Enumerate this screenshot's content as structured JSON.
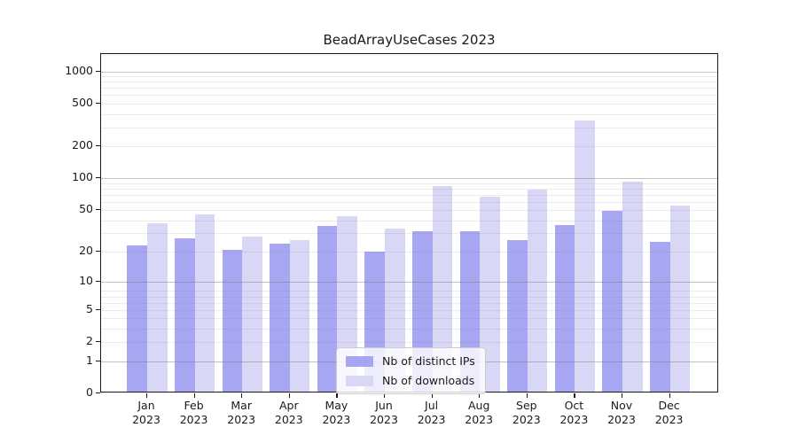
{
  "title": "BeadArrayUseCases 2023",
  "chart_data": {
    "type": "bar",
    "title": "BeadArrayUseCases 2023",
    "categories": [
      "Jan 2023",
      "Feb 2023",
      "Mar 2023",
      "Apr 2023",
      "May 2023",
      "Jun 2023",
      "Jul 2023",
      "Aug 2023",
      "Sep 2023",
      "Oct 2023",
      "Nov 2023",
      "Dec 2023"
    ],
    "series": [
      {
        "name": "Nb of distinct IPs",
        "color": "#a6a6f2",
        "values": [
          22,
          26,
          20,
          23,
          34,
          19,
          30,
          30,
          25,
          35,
          47,
          24
        ]
      },
      {
        "name": "Nb of downloads",
        "color": "#d8d8f6",
        "values": [
          36,
          44,
          27,
          25,
          42,
          32,
          82,
          65,
          75,
          335,
          90,
          53
        ]
      }
    ],
    "xlabel": "",
    "ylabel": "",
    "yscale": "log1p",
    "ylim": [
      0,
      1450
    ],
    "yticks": [
      0,
      1,
      2,
      5,
      10,
      20,
      50,
      100,
      200,
      500,
      1000
    ],
    "grid_major": [
      1,
      10,
      100,
      1000
    ],
    "grid_minor": [
      2,
      3,
      4,
      5,
      6,
      7,
      8,
      20,
      30,
      40,
      50,
      60,
      70,
      80,
      90,
      200,
      300,
      400,
      500,
      600,
      700,
      800,
      900
    ],
    "grid": true,
    "legend_position": "lower center"
  }
}
